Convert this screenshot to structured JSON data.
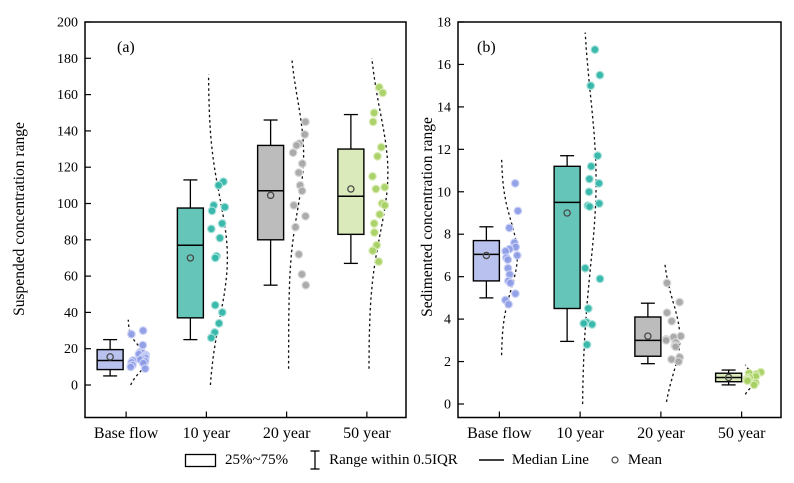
{
  "legend": {
    "items": [
      {
        "symbol": "box-swatch",
        "label": "25%~75%"
      },
      {
        "symbol": "whisker-range",
        "label": "Range within 0.5IQR"
      },
      {
        "symbol": "median-line",
        "label": "Median Line"
      },
      {
        "symbol": "mean-circle",
        "label": "Mean"
      }
    ]
  },
  "chart_data": {
    "type": "box",
    "grid": false,
    "legend_position": "bottom-center",
    "categories": [
      "Base flow",
      "10 year",
      "20 year",
      "50 year"
    ],
    "panels": [
      {
        "label": "(a)",
        "ylabel": "Suspended concentration range",
        "ylim": [
          0,
          200
        ],
        "ytick_step": 20,
        "groups": [
          {
            "category": "Base flow",
            "box": {
              "q1": 8.5,
              "median": 13.5,
              "q3": 19.5,
              "mean": 15.5,
              "whisker_low": 5,
              "whisker_high": 25
            },
            "points": [
              30,
              28,
              22,
              18,
              17.5,
              17,
              16.5,
              16,
              15.5,
              15,
              14.5,
              14,
              13.5,
              13,
              12.5,
              12,
              11,
              10,
              9
            ],
            "density_curve": {
              "range": [
                0,
                36
              ],
              "peak": 14,
              "sigma": 7,
              "amp": 19
            },
            "colors": {
              "box_fill": "#b9c2ee",
              "point_fill": "#8d9ce6",
              "point_edge": "#cdd3f6"
            }
          },
          {
            "category": "10 year",
            "box": {
              "q1": 37,
              "median": 77,
              "q3": 97.5,
              "mean": 70,
              "whisker_low": 25,
              "whisker_high": 113
            },
            "points": [
              112,
              110,
              99,
              98,
              96,
              89,
              86,
              81,
              71,
              70,
              44,
              40,
              34,
              29,
              26
            ],
            "density_curve": {
              "range": [
                0,
                171
              ],
              "peak": 70,
              "sigma": 33,
              "amp": 19
            },
            "colors": {
              "box_fill": "#66c5b9",
              "point_fill": "#30b5a8",
              "point_edge": "#a6e1da"
            }
          },
          {
            "category": "20 year",
            "box": {
              "q1": 80,
              "median": 107,
              "q3": 132,
              "mean": 104.5,
              "whisker_low": 55,
              "whisker_high": 146
            },
            "points": [
              145,
              138,
              133,
              132,
              128,
              122,
              117,
              110,
              107,
              99,
              93,
              87,
              72,
              61,
              55
            ],
            "density_curve": {
              "range": [
                9,
                179
              ],
              "peak": 127,
              "sigma": 30,
              "amp": 15
            },
            "colors": {
              "box_fill": "#bcbcbc",
              "point_fill": "#a6a6a6",
              "point_edge": "#d8d8d8"
            }
          },
          {
            "category": "50 year",
            "box": {
              "q1": 83,
              "median": 104,
              "q3": 130,
              "mean": 108,
              "whisker_low": 67,
              "whisker_high": 149
            },
            "points": [
              164,
              161,
              150,
              145,
              131,
              126,
              115,
              109,
              108,
              100,
              99,
              94,
              89,
              84,
              77,
              74,
              68
            ],
            "density_curve": {
              "range": [
                9,
                180
              ],
              "peak": 117,
              "sigma": 33,
              "amp": 19
            },
            "colors": {
              "box_fill": "#dbeaba",
              "point_fill": "#a7d063",
              "point_edge": "#d9ecb3"
            }
          }
        ]
      },
      {
        "label": "(b)",
        "ylabel": "Sedimented concentration range",
        "ylim": [
          0,
          18
        ],
        "ytick_step": 2,
        "groups": [
          {
            "category": "Base flow",
            "box": {
              "q1": 5.8,
              "median": 7.05,
              "q3": 7.7,
              "mean": 7.0,
              "whisker_low": 5.0,
              "whisker_high": 8.35
            },
            "points": [
              10.4,
              9.1,
              8.3,
              7.6,
              7.4,
              7.3,
              7.2,
              7.0,
              6.9,
              6.8,
              6.4,
              6.1,
              5.8,
              5.7,
              5.2,
              4.9,
              4.7
            ],
            "density_curve": {
              "range": [
                2.3,
                11.6
              ],
              "peak": 7.0,
              "sigma": 1.6,
              "amp": 16
            },
            "colors": {
              "box_fill": "#b9c2ee",
              "point_fill": "#8d9ce6",
              "point_edge": "#cdd3f6"
            }
          },
          {
            "category": "10 year",
            "box": {
              "q1": 4.5,
              "median": 9.5,
              "q3": 11.2,
              "mean": 9.0,
              "whisker_low": 2.95,
              "whisker_high": 11.7
            },
            "points": [
              16.7,
              15.5,
              15.0,
              11.7,
              11.2,
              10.6,
              10.4,
              10.0,
              9.45,
              9.35,
              9.3,
              6.4,
              5.9,
              4.5,
              3.85,
              3.8,
              3.75,
              2.8
            ],
            "density_curve": {
              "range": [
                0,
                17.5
              ],
              "peak": 10.5,
              "sigma": 4,
              "amp": 14
            },
            "colors": {
              "box_fill": "#66c5b9",
              "point_fill": "#30b5a8",
              "point_edge": "#a6e1da"
            }
          },
          {
            "category": "20 year",
            "box": {
              "q1": 2.25,
              "median": 3.0,
              "q3": 4.1,
              "mean": 3.2,
              "whisker_low": 1.9,
              "whisker_high": 4.75
            },
            "points": [
              5.7,
              4.8,
              4.3,
              3.9,
              3.2,
              3.15,
              3.05,
              3.0,
              2.9,
              2.75,
              2.7,
              2.2,
              2.1,
              2.0
            ],
            "density_curve": {
              "range": [
                0.1,
                6.6
              ],
              "peak": 3.1,
              "sigma": 1.7,
              "amp": 17
            },
            "colors": {
              "box_fill": "#bcbcbc",
              "point_fill": "#a6a6a6",
              "point_edge": "#d8d8d8"
            }
          },
          {
            "category": "50 year",
            "box": {
              "q1": 1.05,
              "median": 1.25,
              "q3": 1.45,
              "mean": 1.25,
              "whisker_low": 0.9,
              "whisker_high": 1.6
            },
            "points": [
              1.5,
              1.45,
              1.4,
              1.3,
              1.25,
              1.2,
              1.15,
              1.1,
              1.0,
              0.9
            ],
            "density_curve": {
              "range": [
                0.45,
                1.85
              ],
              "peak": 1.15,
              "sigma": 0.35,
              "amp": 13
            },
            "colors": {
              "box_fill": "#dbeaba",
              "point_fill": "#a7d063",
              "point_edge": "#d9ecb3"
            }
          }
        ]
      }
    ]
  }
}
